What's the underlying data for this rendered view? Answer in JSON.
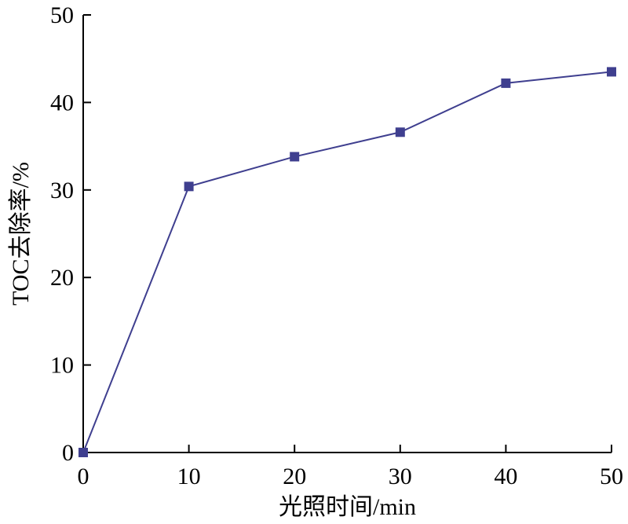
{
  "chart_data": {
    "type": "line",
    "title": "",
    "xlabel": "光照时间/min",
    "ylabel": "TOC去除率/%",
    "xlim": [
      0,
      50
    ],
    "ylim": [
      0,
      50
    ],
    "xticks": [
      0,
      10,
      20,
      30,
      40,
      50
    ],
    "yticks": [
      0,
      10,
      20,
      30,
      40,
      50
    ],
    "xtick_labels": [
      "0",
      "10",
      "20",
      "30",
      "40",
      "50"
    ],
    "ytick_labels": [
      "0",
      "10",
      "20",
      "30",
      "40",
      "50"
    ],
    "grid": false,
    "series": [
      {
        "color": "#3f3f8f",
        "marker": "square",
        "x": [
          0,
          10,
          20,
          30,
          40,
          50
        ],
        "y": [
          0,
          30.4,
          33.8,
          36.6,
          42.2,
          43.5
        ]
      }
    ]
  }
}
